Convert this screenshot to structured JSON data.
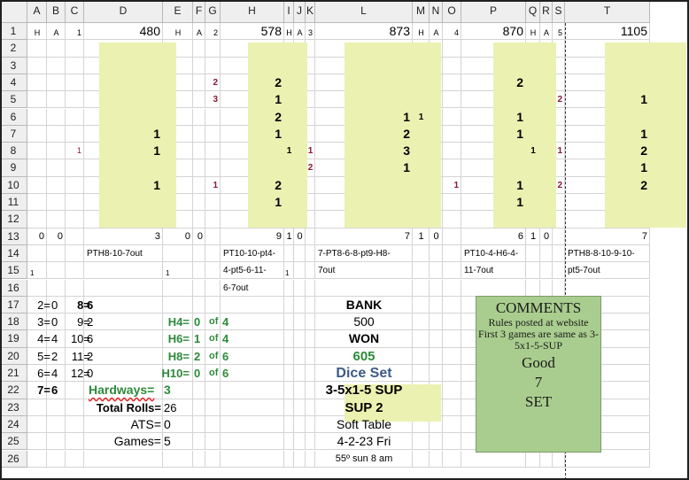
{
  "columns": [
    "A",
    "B",
    "C",
    "D",
    "E",
    "F",
    "G",
    "H",
    "I",
    "J",
    "K",
    "L",
    "M",
    "N",
    "O",
    "P",
    "Q",
    "R",
    "S",
    "T"
  ],
  "rows": [
    "1",
    "2",
    "3",
    "4",
    "5",
    "6",
    "7",
    "8",
    "9",
    "10",
    "11",
    "12",
    "13",
    "14",
    "15",
    "16",
    "17",
    "18",
    "19",
    "20",
    "21",
    "22",
    "23",
    "24",
    "25",
    "26"
  ],
  "row1": {
    "a": "H",
    "b": "A",
    "c": "1",
    "d": "480",
    "e": "H",
    "f": "A",
    "g": "2",
    "h": "578",
    "i": "H",
    "j": "A",
    "k": "3",
    "l": "873",
    "m": "H",
    "n": "A",
    "o": "4",
    "p": "870",
    "q": "H",
    "r": "A",
    "s": "5",
    "t": "1105"
  },
  "game1": {
    "c8": "1",
    "d7": "1",
    "d8": "1",
    "d10": "1",
    "a13": "0",
    "b13": "0",
    "d13": "3",
    "note": "PTH8-10-7out",
    "a15": "1"
  },
  "game2": {
    "g4": "2",
    "g5": "3",
    "g10": "1",
    "h4": "2",
    "h5": "1",
    "h6": "2",
    "h7": "1",
    "h10": "2",
    "h11": "1",
    "i8": "1",
    "e13": "0",
    "f13": "0",
    "h13": "9",
    "i13": "1",
    "j13": "0",
    "note1": "PT10-10-pt4-",
    "note2": "4-pt5-6-11-",
    "note3": "6-7out",
    "e15": "1",
    "i15": "1"
  },
  "game3": {
    "k8": "1",
    "k9": "2",
    "l6": "1",
    "l7": "2",
    "l8": "3",
    "l9": "1",
    "m6": "1",
    "l13": "7",
    "m13": "1",
    "n13": "0",
    "note1": "7-PT8-6-8-pt9-H8-",
    "note2": "7out"
  },
  "game4": {
    "o10": "1",
    "p4": "2",
    "p6": "1",
    "p7": "1",
    "p10": "1",
    "p11": "1",
    "q8": "1",
    "p13": "6",
    "q13": "1",
    "r13": "0",
    "note1": "PT10-4-H6-4-",
    "note2": "11-7out"
  },
  "game5": {
    "s5": "2",
    "s8": "1",
    "s10": "2",
    "t5": "1",
    "t7": "1",
    "t8": "2",
    "t9": "1",
    "t10": "2",
    "t13": "7",
    "note1": "PTH8-8-10-9-10-",
    "note2": "pt5-7out"
  },
  "counts": {
    "r17a": "2=",
    "r17b": "0",
    "r17c": "8=",
    "r17d": "6",
    "r18a": "3=",
    "r18b": "0",
    "r18c": "9=",
    "r18d": "2",
    "r19a": "4=",
    "r19b": "4",
    "r19c": "10=",
    "r19d": "6",
    "r20a": "5=",
    "r20b": "2",
    "r20c": "11=",
    "r20d": "2",
    "r21a": "6=",
    "r21b": "4",
    "r21c": "12=",
    "r21d": "0",
    "r22a": "7=",
    "r22b": "6"
  },
  "hardways": {
    "h4": "H4=",
    "h4v": "0",
    "h4of": "of",
    "h4t": "4",
    "h6": "H6=",
    "h6v": "1",
    "h6of": "of",
    "h6t": "4",
    "h8": "H8=",
    "h8v": "2",
    "h8of": "of",
    "h8t": "6",
    "h10": "H10=",
    "h10v": "0",
    "h10of": "of",
    "h10t": "6",
    "label": "Hardways=",
    "value": "3"
  },
  "totals": {
    "rolls_label": "Total Rolls=",
    "rolls": "26",
    "ats_label": "ATS=",
    "ats": "0",
    "games_label": "Games=",
    "games": "5"
  },
  "bank": {
    "bank_label": "BANK",
    "bank": "500",
    "won_label": "WON",
    "won": "605",
    "dice_set": "Dice Set",
    "set1": "3-5x1-5 SUP",
    "set2": "SUP 2",
    "table": "Soft Table",
    "date": "4-2-23 Fri",
    "weather": "55º sun 8 am"
  },
  "comments": {
    "title": "COMMENTS",
    "line1": "Rules posted at website",
    "line2": "First 3 games are same as 3-",
    "line3": "5x1-5-SUP",
    "good": "Good",
    "seven": "7",
    "set": "SET"
  },
  "colors": {
    "highlight": "#ebf1b1",
    "green": "#2c8a3a",
    "maroon": "#8b1535",
    "comments": "#a9cd8e",
    "dice_set": "#3d5a86"
  }
}
